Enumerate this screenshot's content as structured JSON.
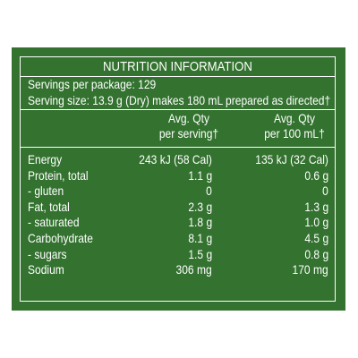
{
  "colors": {
    "panel_background": "#33722f",
    "text": "#ffffff",
    "page_background": "#ffffff"
  },
  "title": "NUTRITION INFORMATION",
  "servings_per_package": "Servings per package: 129",
  "serving_size": "Serving size: 13.9 g (Dry) makes 180 mL prepared as directed†",
  "headers": {
    "per_serving": [
      "Avg. Qty",
      "per serving†"
    ],
    "per_100ml": [
      "Avg. Qty",
      "per 100 mL†"
    ]
  },
  "rows": [
    {
      "label": "Energy",
      "per_serving": "243 kJ (58 Cal)",
      "per_100ml": "135 kJ (32 Cal)"
    },
    {
      "label": "Protein, total",
      "per_serving": "1.1 g",
      "per_100ml": "0.6 g"
    },
    {
      "label": "- gluten",
      "per_serving": "0",
      "per_100ml": "0"
    },
    {
      "label": "Fat, total",
      "per_serving": "2.3 g",
      "per_100ml": "1.3 g"
    },
    {
      "label": "- saturated",
      "per_serving": "1.8 g",
      "per_100ml": "1.0 g"
    },
    {
      "label": "Carbohydrate",
      "per_serving": "8.1 g",
      "per_100ml": "4.5 g"
    },
    {
      "label": "- sugars",
      "per_serving": "1.5 g",
      "per_100ml": "0.8 g"
    },
    {
      "label": "Sodium",
      "per_serving": "306 mg",
      "per_100ml": "170 mg"
    }
  ]
}
